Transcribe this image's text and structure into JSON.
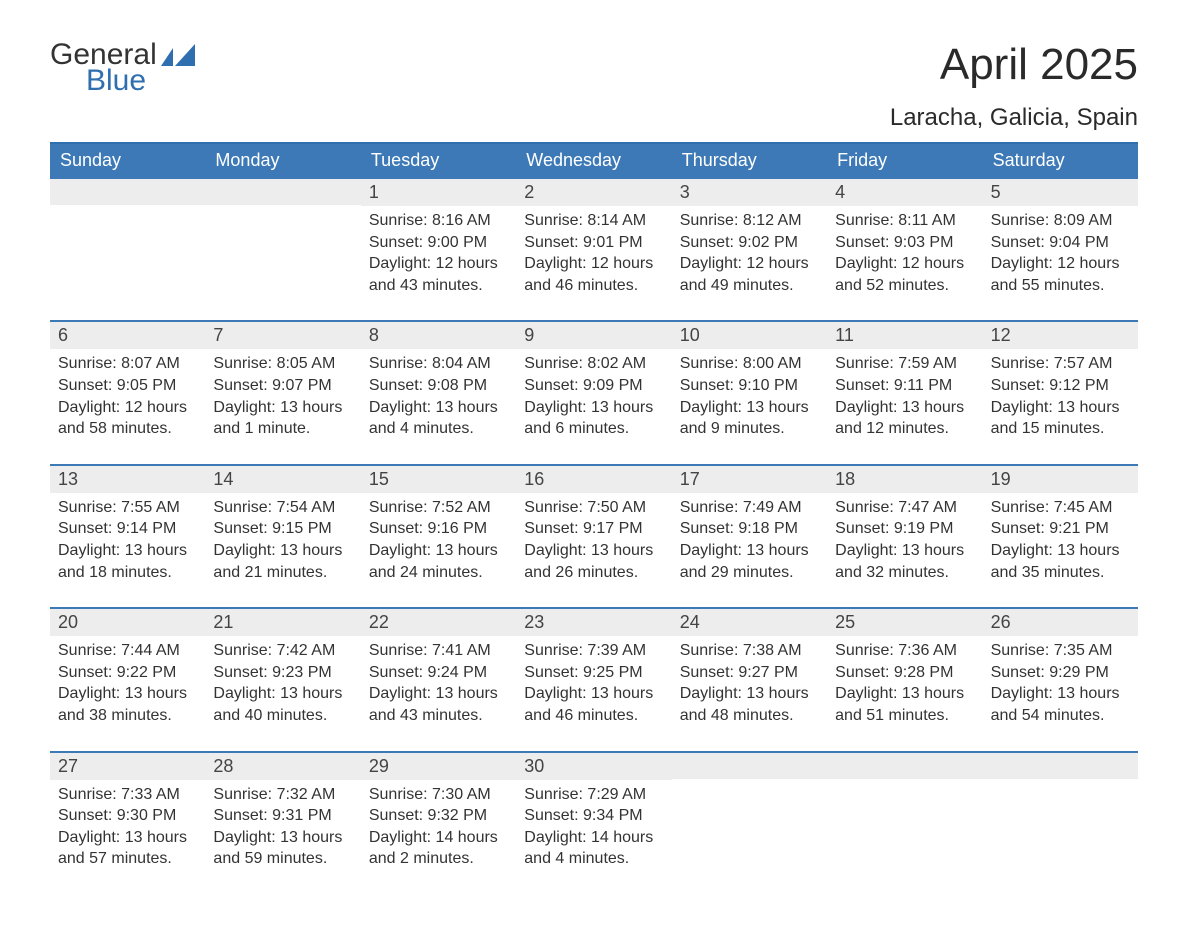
{
  "logo": {
    "text1": "General",
    "text2": "Blue",
    "accent_color": "#2f6fb0"
  },
  "title": "April 2025",
  "location": "Laracha, Galicia, Spain",
  "colors": {
    "header_bg": "#3c79b6",
    "header_text": "#ffffff",
    "row_border": "#3c79b6",
    "daynum_bg": "#ededed",
    "body_text": "#333333",
    "page_bg": "#ffffff"
  },
  "dow": [
    "Sunday",
    "Monday",
    "Tuesday",
    "Wednesday",
    "Thursday",
    "Friday",
    "Saturday"
  ],
  "weeks": [
    [
      {
        "day": ""
      },
      {
        "day": ""
      },
      {
        "day": "1",
        "sunrise": "Sunrise: 8:16 AM",
        "sunset": "Sunset: 9:00 PM",
        "daylight": "Daylight: 12 hours and 43 minutes."
      },
      {
        "day": "2",
        "sunrise": "Sunrise: 8:14 AM",
        "sunset": "Sunset: 9:01 PM",
        "daylight": "Daylight: 12 hours and 46 minutes."
      },
      {
        "day": "3",
        "sunrise": "Sunrise: 8:12 AM",
        "sunset": "Sunset: 9:02 PM",
        "daylight": "Daylight: 12 hours and 49 minutes."
      },
      {
        "day": "4",
        "sunrise": "Sunrise: 8:11 AM",
        "sunset": "Sunset: 9:03 PM",
        "daylight": "Daylight: 12 hours and 52 minutes."
      },
      {
        "day": "5",
        "sunrise": "Sunrise: 8:09 AM",
        "sunset": "Sunset: 9:04 PM",
        "daylight": "Daylight: 12 hours and 55 minutes."
      }
    ],
    [
      {
        "day": "6",
        "sunrise": "Sunrise: 8:07 AM",
        "sunset": "Sunset: 9:05 PM",
        "daylight": "Daylight: 12 hours and 58 minutes."
      },
      {
        "day": "7",
        "sunrise": "Sunrise: 8:05 AM",
        "sunset": "Sunset: 9:07 PM",
        "daylight": "Daylight: 13 hours and 1 minute."
      },
      {
        "day": "8",
        "sunrise": "Sunrise: 8:04 AM",
        "sunset": "Sunset: 9:08 PM",
        "daylight": "Daylight: 13 hours and 4 minutes."
      },
      {
        "day": "9",
        "sunrise": "Sunrise: 8:02 AM",
        "sunset": "Sunset: 9:09 PM",
        "daylight": "Daylight: 13 hours and 6 minutes."
      },
      {
        "day": "10",
        "sunrise": "Sunrise: 8:00 AM",
        "sunset": "Sunset: 9:10 PM",
        "daylight": "Daylight: 13 hours and 9 minutes."
      },
      {
        "day": "11",
        "sunrise": "Sunrise: 7:59 AM",
        "sunset": "Sunset: 9:11 PM",
        "daylight": "Daylight: 13 hours and 12 minutes."
      },
      {
        "day": "12",
        "sunrise": "Sunrise: 7:57 AM",
        "sunset": "Sunset: 9:12 PM",
        "daylight": "Daylight: 13 hours and 15 minutes."
      }
    ],
    [
      {
        "day": "13",
        "sunrise": "Sunrise: 7:55 AM",
        "sunset": "Sunset: 9:14 PM",
        "daylight": "Daylight: 13 hours and 18 minutes."
      },
      {
        "day": "14",
        "sunrise": "Sunrise: 7:54 AM",
        "sunset": "Sunset: 9:15 PM",
        "daylight": "Daylight: 13 hours and 21 minutes."
      },
      {
        "day": "15",
        "sunrise": "Sunrise: 7:52 AM",
        "sunset": "Sunset: 9:16 PM",
        "daylight": "Daylight: 13 hours and 24 minutes."
      },
      {
        "day": "16",
        "sunrise": "Sunrise: 7:50 AM",
        "sunset": "Sunset: 9:17 PM",
        "daylight": "Daylight: 13 hours and 26 minutes."
      },
      {
        "day": "17",
        "sunrise": "Sunrise: 7:49 AM",
        "sunset": "Sunset: 9:18 PM",
        "daylight": "Daylight: 13 hours and 29 minutes."
      },
      {
        "day": "18",
        "sunrise": "Sunrise: 7:47 AM",
        "sunset": "Sunset: 9:19 PM",
        "daylight": "Daylight: 13 hours and 32 minutes."
      },
      {
        "day": "19",
        "sunrise": "Sunrise: 7:45 AM",
        "sunset": "Sunset: 9:21 PM",
        "daylight": "Daylight: 13 hours and 35 minutes."
      }
    ],
    [
      {
        "day": "20",
        "sunrise": "Sunrise: 7:44 AM",
        "sunset": "Sunset: 9:22 PM",
        "daylight": "Daylight: 13 hours and 38 minutes."
      },
      {
        "day": "21",
        "sunrise": "Sunrise: 7:42 AM",
        "sunset": "Sunset: 9:23 PM",
        "daylight": "Daylight: 13 hours and 40 minutes."
      },
      {
        "day": "22",
        "sunrise": "Sunrise: 7:41 AM",
        "sunset": "Sunset: 9:24 PM",
        "daylight": "Daylight: 13 hours and 43 minutes."
      },
      {
        "day": "23",
        "sunrise": "Sunrise: 7:39 AM",
        "sunset": "Sunset: 9:25 PM",
        "daylight": "Daylight: 13 hours and 46 minutes."
      },
      {
        "day": "24",
        "sunrise": "Sunrise: 7:38 AM",
        "sunset": "Sunset: 9:27 PM",
        "daylight": "Daylight: 13 hours and 48 minutes."
      },
      {
        "day": "25",
        "sunrise": "Sunrise: 7:36 AM",
        "sunset": "Sunset: 9:28 PM",
        "daylight": "Daylight: 13 hours and 51 minutes."
      },
      {
        "day": "26",
        "sunrise": "Sunrise: 7:35 AM",
        "sunset": "Sunset: 9:29 PM",
        "daylight": "Daylight: 13 hours and 54 minutes."
      }
    ],
    [
      {
        "day": "27",
        "sunrise": "Sunrise: 7:33 AM",
        "sunset": "Sunset: 9:30 PM",
        "daylight": "Daylight: 13 hours and 57 minutes."
      },
      {
        "day": "28",
        "sunrise": "Sunrise: 7:32 AM",
        "sunset": "Sunset: 9:31 PM",
        "daylight": "Daylight: 13 hours and 59 minutes."
      },
      {
        "day": "29",
        "sunrise": "Sunrise: 7:30 AM",
        "sunset": "Sunset: 9:32 PM",
        "daylight": "Daylight: 14 hours and 2 minutes."
      },
      {
        "day": "30",
        "sunrise": "Sunrise: 7:29 AM",
        "sunset": "Sunset: 9:34 PM",
        "daylight": "Daylight: 14 hours and 4 minutes."
      },
      {
        "day": ""
      },
      {
        "day": ""
      },
      {
        "day": ""
      }
    ]
  ]
}
